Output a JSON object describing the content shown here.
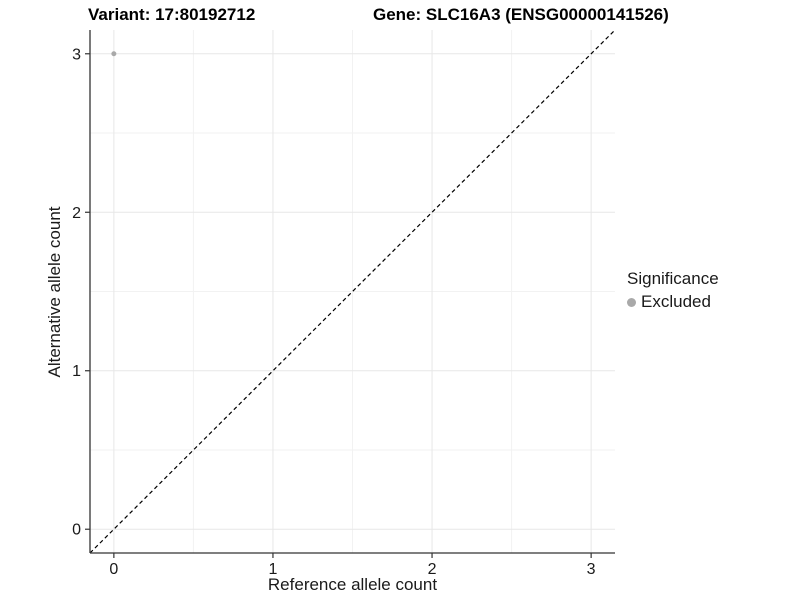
{
  "chart_data": {
    "type": "scatter",
    "title_left": "Variant: 17:80192712",
    "title_right": "Gene: SLC16A3 (ENSG00000141526)",
    "xlabel": "Reference allele count",
    "ylabel": "Alternative allele count",
    "xlim": [
      -0.15,
      3.15
    ],
    "ylim": [
      -0.15,
      3.15
    ],
    "x_ticks": [
      0,
      1,
      2,
      3
    ],
    "y_ticks": [
      0,
      1,
      2,
      3
    ],
    "x_minor_ticks": [
      0.5,
      1.5,
      2.5
    ],
    "y_minor_ticks": [
      0.5,
      1.5,
      2.5
    ],
    "grid": "major+minor",
    "series": [
      {
        "name": "Excluded",
        "color": "#a9a9a9",
        "points": [
          {
            "x": 0,
            "y": 3
          }
        ]
      }
    ],
    "reference_line": {
      "kind": "identity y=x",
      "style": "dashed",
      "color": "#000000",
      "from": {
        "x": -0.15,
        "y": -0.15
      },
      "to": {
        "x": 3.15,
        "y": 3.15
      }
    },
    "legend": {
      "title": "Significance",
      "position": "right",
      "entries": [
        {
          "label": "Excluded",
          "color": "#a9a9a9"
        }
      ]
    },
    "colors": {
      "grid_major": "#e7e7e7",
      "grid_minor": "#f2f2f2",
      "axis_line": "#333333",
      "tick_label": "#1a1a1a",
      "title": "#000000"
    }
  }
}
